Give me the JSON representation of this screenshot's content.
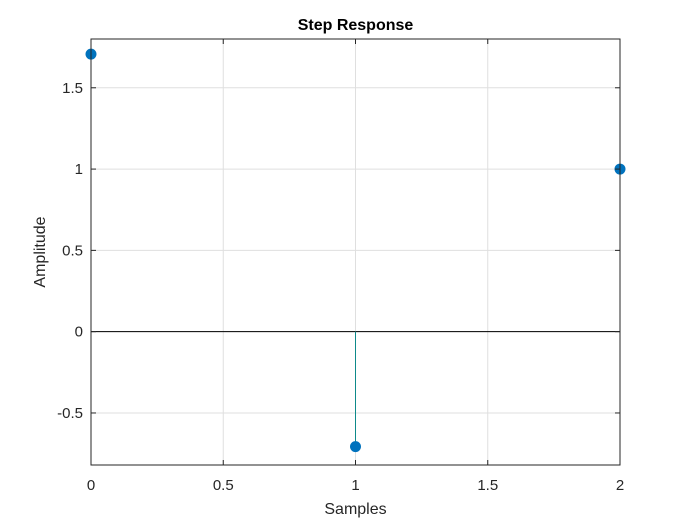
{
  "chart_data": {
    "type": "stem",
    "title": "Step Response",
    "xlabel": "Samples",
    "ylabel": "Amplitude",
    "x": [
      0,
      1,
      2
    ],
    "y": [
      1.707,
      -0.707,
      1.0
    ],
    "xlim": [
      0,
      2
    ],
    "ylim": [
      -0.82,
      1.8
    ],
    "xticks": [
      0,
      0.5,
      1,
      1.5,
      2
    ],
    "xtick_labels": [
      "0",
      "0.5",
      "1",
      "1.5",
      "2"
    ],
    "yticks": [
      -0.5,
      0,
      0.5,
      1,
      1.5
    ],
    "ytick_labels": [
      "-0.5",
      "0",
      "0.5",
      "1",
      "1.5"
    ],
    "grid": true,
    "baseline": 0,
    "colors": {
      "marker": "#0072BD",
      "stem": "#0e8a8a",
      "grid": "#dfdfdf",
      "axes": "#262626"
    }
  }
}
